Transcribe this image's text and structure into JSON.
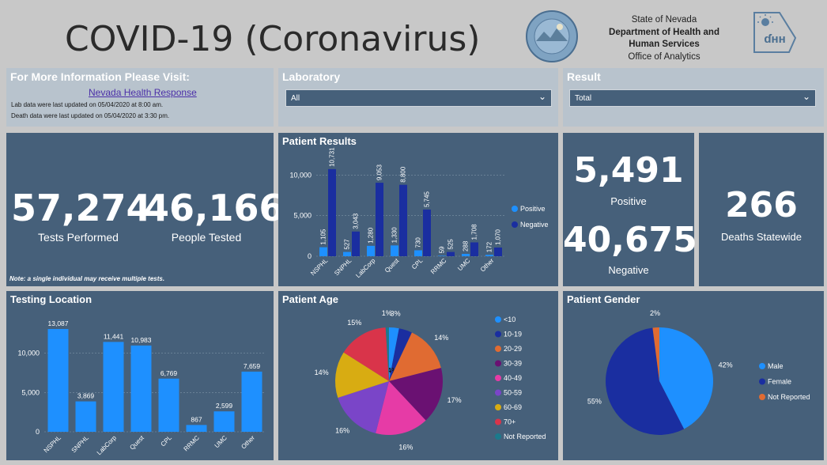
{
  "header": {
    "title": "COVID-19 (Coronavirus)",
    "agency_lines": [
      "State of Nevada",
      "Department of Health and",
      "Human Services",
      "Office of Analytics"
    ]
  },
  "info": {
    "title": "For More Information Please Visit:",
    "link": "Nevada Health Response",
    "lab_update": "Lab data were last updated on 05/04/2020 at 8:00 am.",
    "death_update": "Death data were last updated on 05/04/2020 at 3:30 pm."
  },
  "filters": {
    "laboratory": {
      "label": "Laboratory",
      "value": "All"
    },
    "result": {
      "label": "Result",
      "value": "Total"
    }
  },
  "kpis": {
    "tests_performed": {
      "value": "57,274",
      "label": "Tests Performed"
    },
    "people_tested": {
      "value": "46,166",
      "label": "People Tested"
    },
    "note": "Note: a single individual may receive multiple tests.",
    "positive": {
      "value": "5,491",
      "label": "Positive"
    },
    "negative": {
      "value": "40,675",
      "label": "Negative"
    },
    "deaths": {
      "value": "266",
      "label": "Deaths Statewide"
    }
  },
  "colors": {
    "panel": "#46607a",
    "light_blue": "#1e90ff",
    "dark_blue": "#1a2ea0",
    "orange": "#e06b32"
  },
  "chart_data": [
    {
      "id": "patient_results",
      "type": "bar",
      "title": "Patient Results",
      "categories": [
        "NSPHL",
        "SNPHL",
        "LabCorp",
        "Quest",
        "CPL",
        "RRMC",
        "UMC",
        "Other"
      ],
      "series": [
        {
          "name": "Positive",
          "values": [
            1105,
            527,
            1280,
            1330,
            730,
            59,
            288,
            172
          ],
          "labels": [
            "1,105",
            "527",
            "1,280",
            "1,330",
            "730",
            "59",
            "288",
            "172"
          ],
          "color": "#1e90ff"
        },
        {
          "name": "Negative",
          "values": [
            10731,
            3043,
            9053,
            8800,
            5745,
            525,
            1708,
            1070
          ],
          "labels": [
            "10,731",
            "3,043",
            "9,053",
            "8,800",
            "5,745",
            "525",
            "1,708",
            "1,070"
          ],
          "color": "#1a2ea0"
        }
      ],
      "yticks": [
        "0",
        "5,000",
        "10,000"
      ],
      "ylim": [
        0,
        11500
      ],
      "legend": "right"
    },
    {
      "id": "testing_location",
      "type": "bar",
      "title": "Testing Location",
      "categories": [
        "NSPHL",
        "SNPHL",
        "LabCorp",
        "Quest",
        "CPL",
        "RRMC",
        "UMC",
        "Other"
      ],
      "values": [
        13087,
        3869,
        11441,
        10983,
        6769,
        867,
        2599,
        7659
      ],
      "labels": [
        "13,087",
        "3,869",
        "11,441",
        "10,983",
        "6,769",
        "867",
        "2,599",
        "7,659"
      ],
      "yticks": [
        "0",
        "5,000",
        "10,000"
      ],
      "ylim": [
        0,
        14500
      ],
      "color": "#1e90ff"
    },
    {
      "id": "patient_age",
      "type": "pie",
      "title": "Patient Age",
      "categories": [
        "<10",
        "10-19",
        "20-29",
        "30-39",
        "40-49",
        "50-59",
        "60-69",
        "70+",
        "Not Reported"
      ],
      "values": [
        3,
        4,
        14,
        17,
        16,
        16,
        14,
        15,
        1
      ],
      "labels": [
        "3%",
        "4%",
        "14%",
        "17%",
        "16%",
        "16%",
        "14%",
        "15%",
        "1%"
      ],
      "colors": [
        "#1e90ff",
        "#1a2ea0",
        "#e06b32",
        "#6a1172",
        "#e63ba6",
        "#7a45c8",
        "#d8ac12",
        "#d9344a",
        "#1b7a8c"
      ],
      "legend": "right"
    },
    {
      "id": "patient_gender",
      "type": "pie",
      "title": "Patient Gender",
      "categories": [
        "Male",
        "Female",
        "Not Reported"
      ],
      "values": [
        42,
        55,
        2
      ],
      "labels": [
        "42%",
        "55%",
        "2%"
      ],
      "colors": [
        "#1e90ff",
        "#1a2ea0",
        "#e06b32"
      ],
      "legend": "right"
    }
  ]
}
